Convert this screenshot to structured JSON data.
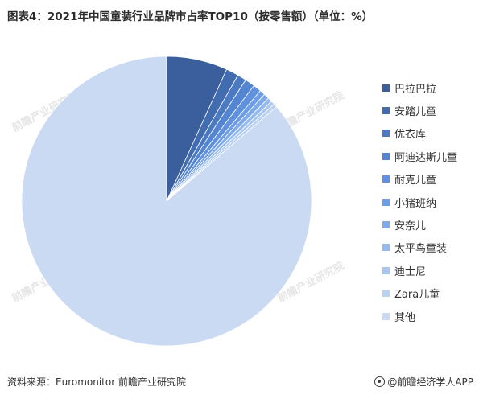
{
  "title": "图表4：2021年中国童装行业品牌市占率TOP10（按零售额）（单位：%）",
  "watermark": "前瞻产业研究院",
  "source": "资料来源：Euromonitor 前瞻产业研究院",
  "brand": "@前瞻经济学人APP",
  "chart_data": {
    "type": "pie",
    "title": "图表4：2021年中国童装行业品牌市占率TOP10（按零售额）（单位：%）",
    "legend_position": "right",
    "start_angle": "12 o'clock",
    "direction": "clockwise",
    "slices": [
      {
        "label": "巴拉巴拉",
        "value": 6.8,
        "color": "#3a5f9c"
      },
      {
        "label": "安踏儿童",
        "value": 1.4,
        "color": "#416cb0"
      },
      {
        "label": "优衣库",
        "value": 1.0,
        "color": "#4b79c2"
      },
      {
        "label": "阿迪达斯儿童",
        "value": 1.1,
        "color": "#5485d2"
      },
      {
        "label": "耐克儿童",
        "value": 0.9,
        "color": "#5f91de"
      },
      {
        "label": "小猪班纳",
        "value": 0.6,
        "color": "#6c9de6"
      },
      {
        "label": "安奈儿",
        "value": 0.6,
        "color": "#7eaaea"
      },
      {
        "label": "太平鸟童装",
        "value": 0.5,
        "color": "#93b9ee"
      },
      {
        "label": "迪士尼",
        "value": 0.4,
        "color": "#a8c6f0"
      },
      {
        "label": "Zara儿童",
        "value": 0.4,
        "color": "#b9d2f2"
      },
      {
        "label": "其他",
        "value": 86.3,
        "color": "#cbdaf3"
      }
    ]
  }
}
